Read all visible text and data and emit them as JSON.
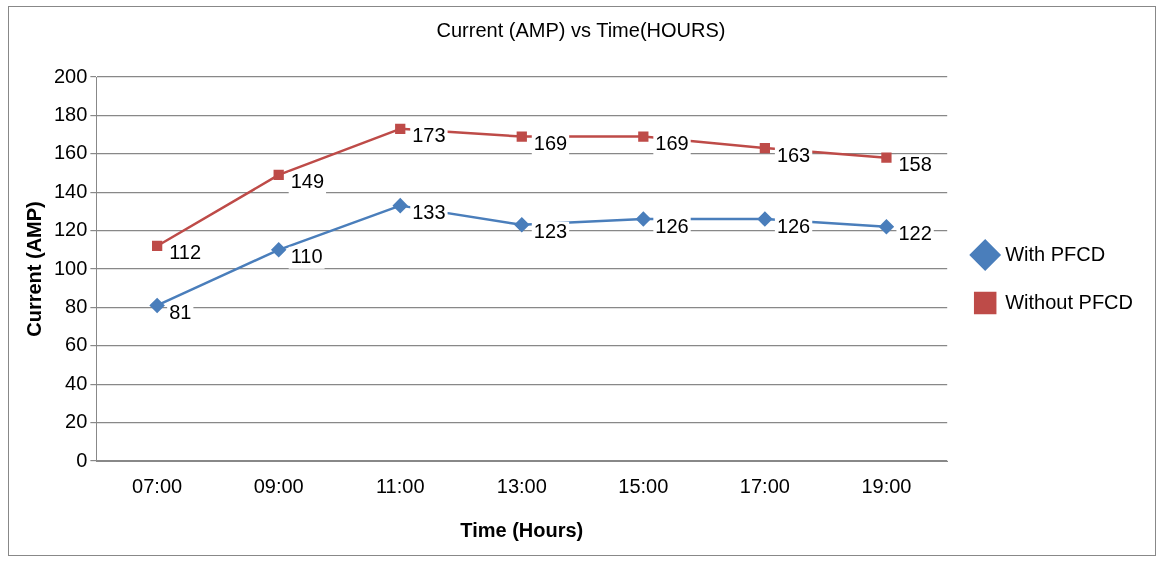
{
  "chart_data": {
    "type": "line",
    "title": "Current (AMP) vs Time(HOURS)",
    "xlabel": "Time (Hours)",
    "ylabel": "Current (AMP)",
    "categories": [
      "07:00",
      "09:00",
      "11:00",
      "13:00",
      "15:00",
      "17:00",
      "19:00"
    ],
    "series": [
      {
        "name": "With PFCD",
        "color": "#4a7ebb",
        "marker": "diamond",
        "values": [
          81,
          110,
          133,
          123,
          126,
          126,
          122
        ]
      },
      {
        "name": "Without PFCD",
        "color": "#be4b48",
        "marker": "square",
        "values": [
          112,
          149,
          173,
          169,
          169,
          163,
          158
        ]
      }
    ],
    "ylim": [
      0,
      200
    ],
    "yticks": [
      0,
      20,
      40,
      60,
      80,
      100,
      120,
      140,
      160,
      180,
      200
    ],
    "grid": "y",
    "legend": "right",
    "data_labels": true
  }
}
